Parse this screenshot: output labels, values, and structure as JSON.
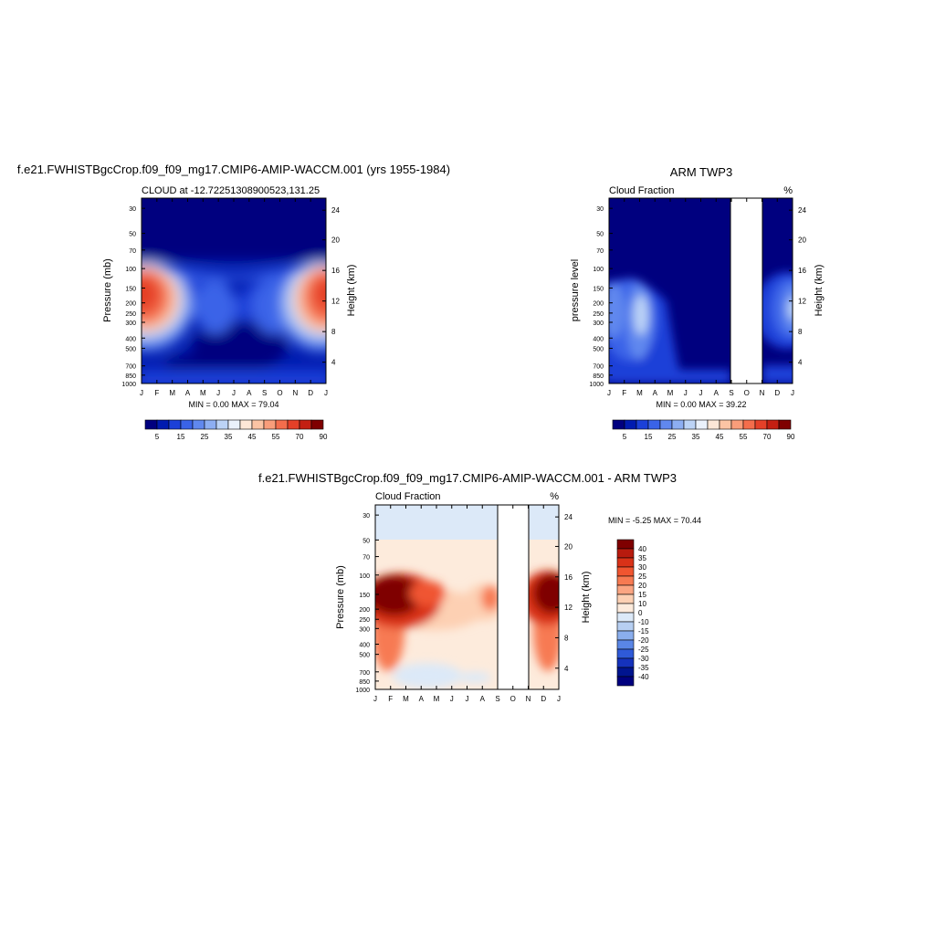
{
  "panels": [
    {
      "id": "model",
      "title": "f.e21.FWHISTBgcCrop.f09_f09_mg17.CMIP6-AMIP-WACCM.001 (yrs 1955-1984)",
      "left_label": "CLOUD at -12.72251308900523,131.25",
      "right_label": "",
      "ylabel_left": "Pressure (mb)",
      "ylabel_right": "Height (km)",
      "minmax": "MIN =   0.00 MAX =  79.04"
    },
    {
      "id": "obs",
      "title": "ARM TWP3",
      "left_label": "Cloud Fraction",
      "right_label": "%",
      "ylabel_left": "pressure level",
      "ylabel_right": "Height (km)",
      "minmax": "MIN =   0.00 MAX =  39.22"
    },
    {
      "id": "diff",
      "title": "f.e21.FWHISTBgcCrop.f09_f09_mg17.CMIP6-AMIP-WACCM.001 - ARM TWP3",
      "left_label": "Cloud Fraction",
      "right_label": "%",
      "ylabel_left": "Pressure (mb)",
      "ylabel_right": "Height (km)",
      "minmax": "MIN =  -5.25 MAX =  70.44"
    }
  ],
  "chart_data": [
    {
      "type": "heatmap",
      "x": [
        "J",
        "F",
        "M",
        "A",
        "M",
        "J",
        "J",
        "A",
        "S",
        "O",
        "N",
        "D",
        "J"
      ],
      "y_pressure_ticks": [
        "30",
        "50",
        "70",
        "100",
        "150",
        "200",
        "250",
        "300",
        "400",
        "500",
        "700",
        "850",
        "1000"
      ],
      "y_height_ticks": [
        "24",
        "20",
        "16",
        "12",
        "8",
        "4"
      ],
      "colorbar_labels": [
        "5",
        "15",
        "25",
        "35",
        "45",
        "55",
        "70",
        "90"
      ],
      "colors": [
        "#00007f",
        "#001bb0",
        "#1b40d8",
        "#3a63e8",
        "#6088ee",
        "#8daef2",
        "#bcd3f6",
        "#eaf1fb",
        "#fde7d7",
        "#fbc4a4",
        "#f99d7a",
        "#f46d4c",
        "#e54028",
        "#c41f12",
        "#7f0000"
      ]
    },
    {
      "type": "heatmap",
      "x": [
        "J",
        "F",
        "M",
        "A",
        "M",
        "J",
        "J",
        "A",
        "S",
        "O",
        "N",
        "D",
        "J"
      ],
      "y_pressure_ticks": [
        "30",
        "50",
        "70",
        "100",
        "150",
        "200",
        "250",
        "300",
        "400",
        "500",
        "700",
        "850",
        "1000"
      ],
      "y_height_ticks": [
        "24",
        "20",
        "16",
        "12",
        "8",
        "4"
      ],
      "missing_months": [
        "S",
        "O"
      ],
      "colorbar_labels": [
        "5",
        "15",
        "25",
        "35",
        "45",
        "55",
        "70",
        "90"
      ]
    },
    {
      "type": "heatmap",
      "x": [
        "J",
        "F",
        "M",
        "A",
        "M",
        "J",
        "J",
        "A",
        "S",
        "O",
        "N",
        "D",
        "J"
      ],
      "y_pressure_ticks": [
        "30",
        "50",
        "70",
        "100",
        "150",
        "200",
        "250",
        "300",
        "400",
        "500",
        "700",
        "850",
        "1000"
      ],
      "y_height_ticks": [
        "24",
        "20",
        "16",
        "12",
        "8",
        "4"
      ],
      "missing_months": [
        "S",
        "O"
      ],
      "colorbar_labels": [
        "40",
        "35",
        "30",
        "25",
        "20",
        "15",
        "10",
        "0",
        "-10",
        "-15",
        "-20",
        "-25",
        "-30",
        "-35",
        "-40"
      ],
      "colors": [
        "#7f0000",
        "#b81b0e",
        "#d93218",
        "#f05530",
        "#f77a52",
        "#fba582",
        "#fdd0b3",
        "#fdebdc",
        "#dce9f8",
        "#b7cff2",
        "#8aaeed",
        "#5a86e6",
        "#2f5ad8",
        "#1532bc",
        "#00148f",
        "#00007f"
      ]
    }
  ]
}
